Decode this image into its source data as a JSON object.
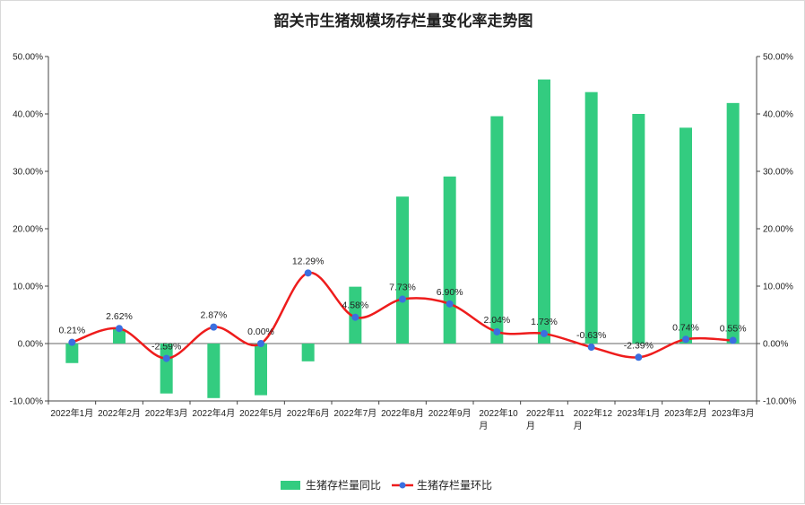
{
  "chart_data": {
    "type": "bar+line",
    "title": "韶关市生猪规模场存栏量变化率走势图",
    "categories": [
      [
        "2022年1月"
      ],
      [
        "2022年2月"
      ],
      [
        "2022年3月"
      ],
      [
        "2022年4月"
      ],
      [
        "2022年5月"
      ],
      [
        "2022年6月"
      ],
      [
        "2022年7月"
      ],
      [
        "2022年8月"
      ],
      [
        "2022年9月"
      ],
      [
        "2022年10",
        "月"
      ],
      [
        "2022年11",
        "月"
      ],
      [
        "2022年12",
        "月"
      ],
      [
        "2023年1月"
      ],
      [
        "2023年2月"
      ],
      [
        "2023年3月"
      ]
    ],
    "series": [
      {
        "name": "生猪存栏量同比",
        "type": "bar",
        "axis": "left",
        "color": "#33cc80",
        "values": [
          -3.4,
          2.5,
          -8.7,
          -9.5,
          -9.0,
          -3.1,
          9.9,
          25.6,
          29.1,
          39.6,
          46.0,
          43.8,
          40.0,
          37.6,
          41.9
        ]
      },
      {
        "name": "生猪存栏量环比",
        "type": "line",
        "axis": "right",
        "color": "#ee1c1c",
        "marker_color": "#3b6fe0",
        "values": [
          0.21,
          2.62,
          -2.59,
          2.87,
          0.0,
          12.29,
          4.58,
          7.73,
          6.9,
          2.04,
          1.73,
          -0.63,
          -2.39,
          0.74,
          0.55
        ],
        "labels": [
          "0.21%",
          "2.62%",
          "-2.59%",
          "2.87%",
          "0.00%",
          "12.29%",
          "4.58%",
          "7.73%",
          "6.90%",
          "2.04%",
          "1.73%",
          "-0.63%",
          "-2.39%",
          "0.74%",
          "0.55%"
        ]
      }
    ],
    "y_left": {
      "min": -10,
      "max": 50,
      "step": 10,
      "tick_labels": [
        "-10.00%",
        "0.00%",
        "10.00%",
        "20.00%",
        "30.00%",
        "40.00%",
        "50.00%"
      ]
    },
    "y_right": {
      "min": -10,
      "max": 50,
      "step": 10,
      "tick_labels": [
        "-10.00%",
        "0.00%",
        "10.00%",
        "20.00%",
        "30.00%",
        "40.00%",
        "50.00%"
      ]
    },
    "grid": false,
    "legend_position": "bottom"
  }
}
